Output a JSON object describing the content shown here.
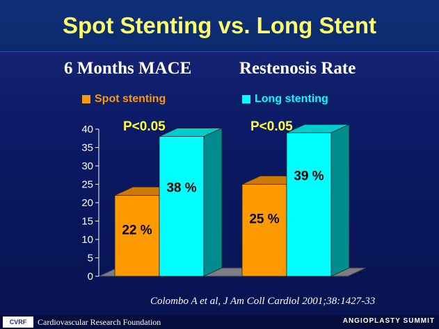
{
  "slide": {
    "title": "Spot Stenting vs. Long Stent",
    "citation": "Colombo A et al, J Am Coll Cardiol 2001;38:1427-33",
    "foundation": "Cardiovascular Research Foundation",
    "logo_text": "CVRF",
    "summit": "ANGIOPLASTY SUMMIT"
  },
  "chart_data": {
    "type": "bar",
    "categories": [
      "6 Months MACE",
      "Restenosis Rate"
    ],
    "series": [
      {
        "name": "Spot stenting",
        "values": [
          22,
          25
        ],
        "labels": [
          "22 %",
          "25 %"
        ],
        "color": "#ff9900"
      },
      {
        "name": "Long stenting",
        "values": [
          38,
          39
        ],
        "labels": [
          "38 %",
          "39 %"
        ],
        "color": "#00ffff"
      }
    ],
    "annotations": [
      "P<0.05",
      "P<0.05"
    ],
    "ylim": [
      0,
      40
    ],
    "yticks": [
      0,
      5,
      10,
      15,
      20,
      25,
      30,
      35,
      40
    ],
    "legend_position": "top",
    "grid": false
  },
  "colors": {
    "title": "#ffff66",
    "annotation": "#ffff33"
  }
}
